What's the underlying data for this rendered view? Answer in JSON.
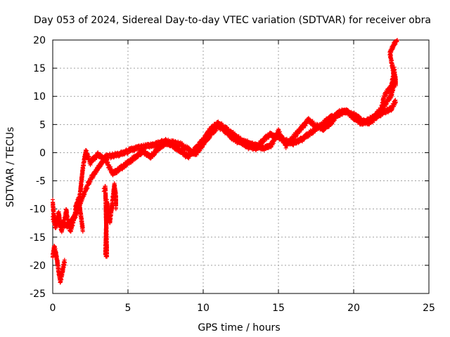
{
  "chart_data": {
    "type": "scatter",
    "title": "Day 053 of 2024, Sidereal Day-to-day VTEC variation (SDTVAR) for receiver obra",
    "xlabel": "GPS time / hours",
    "ylabel": "SDTVAR / TECUs",
    "xlim": [
      0,
      25
    ],
    "ylim": [
      -25,
      20
    ],
    "xticks": [
      "0",
      "5",
      "10",
      "15",
      "20",
      "25"
    ],
    "yticks": [
      "-25",
      "-20",
      "-15",
      "-10",
      "-5",
      "0",
      "5",
      "10",
      "15",
      "20"
    ],
    "grid": true,
    "marker": "+",
    "series": [
      {
        "name": "early_scatter",
        "points": [
          [
            0,
            -9
          ],
          [
            0.1,
            -12.5
          ],
          [
            0.2,
            -13.5
          ],
          [
            0.3,
            -12
          ],
          [
            0.4,
            -11
          ],
          [
            0.5,
            -13
          ],
          [
            0.6,
            -14
          ],
          [
            0.7,
            -12.5
          ],
          [
            0.8,
            -12
          ],
          [
            0.9,
            -10.5
          ],
          [
            1.0,
            -12.5
          ],
          [
            1.1,
            -13.5
          ],
          [
            1.2,
            -14
          ],
          [
            1.3,
            -13
          ],
          [
            1.4,
            -12
          ],
          [
            1.5,
            -11
          ],
          [
            1.6,
            -10
          ],
          [
            1.7,
            -9
          ],
          [
            1.8,
            -10
          ],
          [
            1.9,
            -12
          ],
          [
            2.0,
            -14
          ]
        ]
      },
      {
        "name": "track_a",
        "points": [
          [
            0,
            -12
          ],
          [
            0.5,
            -12.8
          ],
          [
            1.0,
            -13.2
          ],
          [
            1.5,
            -11.5
          ],
          [
            2.0,
            -8
          ],
          [
            2.5,
            -5
          ],
          [
            3.0,
            -3
          ],
          [
            3.5,
            -1
          ],
          [
            4.5,
            -0.5
          ],
          [
            5.5,
            0.5
          ],
          [
            6.5,
            1
          ],
          [
            7.5,
            1.8
          ],
          [
            8.5,
            1.2
          ],
          [
            9.5,
            -0.5
          ],
          [
            10.5,
            3
          ],
          [
            11.0,
            4.5
          ],
          [
            11.5,
            3.5
          ],
          [
            12.0,
            2.2
          ],
          [
            12.5,
            1.5
          ],
          [
            13.0,
            0.8
          ],
          [
            13.5,
            0.5
          ],
          [
            14.0,
            2
          ],
          [
            14.5,
            3
          ],
          [
            15.0,
            2.5
          ],
          [
            15.5,
            1.8
          ],
          [
            16.0,
            1.5
          ],
          [
            16.5,
            2
          ],
          [
            17.0,
            3
          ],
          [
            17.5,
            4
          ],
          [
            18.0,
            5
          ],
          [
            18.5,
            6
          ],
          [
            19.0,
            6.5
          ],
          [
            19.5,
            7.2
          ],
          [
            20.0,
            6.5
          ],
          [
            20.5,
            5.5
          ],
          [
            21.0,
            5
          ],
          [
            21.5,
            6
          ],
          [
            22.0,
            7
          ],
          [
            22.5,
            7.5
          ],
          [
            22.8,
            9
          ]
        ]
      },
      {
        "name": "track_b",
        "points": [
          [
            1.5,
            -10
          ],
          [
            1.8,
            -8
          ],
          [
            2.0,
            -3
          ],
          [
            2.2,
            0
          ],
          [
            2.5,
            -2
          ],
          [
            3.0,
            -0.5
          ],
          [
            3.5,
            -1.5
          ],
          [
            4.0,
            -4
          ],
          [
            4.5,
            -3
          ],
          [
            5.0,
            -2
          ],
          [
            5.5,
            -1
          ],
          [
            6.0,
            0
          ],
          [
            6.5,
            -1
          ],
          [
            7.0,
            0.5
          ],
          [
            7.5,
            1.5
          ],
          [
            8.0,
            1
          ],
          [
            8.5,
            0
          ],
          [
            9.0,
            -1
          ],
          [
            9.5,
            0.5
          ],
          [
            10.0,
            2
          ],
          [
            10.5,
            4
          ],
          [
            11.0,
            5
          ],
          [
            11.5,
            4
          ],
          [
            12.0,
            3
          ],
          [
            12.5,
            2
          ],
          [
            13.0,
            1.5
          ],
          [
            13.5,
            1
          ],
          [
            14.0,
            0.5
          ],
          [
            14.5,
            1
          ],
          [
            15.0,
            3.5
          ],
          [
            15.5,
            1
          ],
          [
            16.0,
            2.5
          ],
          [
            16.5,
            4
          ],
          [
            17.0,
            5.5
          ],
          [
            17.5,
            4.5
          ],
          [
            18.0,
            4
          ],
          [
            18.5,
            5
          ],
          [
            19.0,
            7
          ],
          [
            19.5,
            7
          ],
          [
            20.0,
            6
          ],
          [
            20.5,
            5
          ],
          [
            21.0,
            5.5
          ],
          [
            21.5,
            6.5
          ],
          [
            22.0,
            8
          ],
          [
            22.5,
            10
          ],
          [
            22.8,
            13
          ]
        ]
      },
      {
        "name": "low_cluster",
        "points": [
          [
            0,
            -18.5
          ],
          [
            0.1,
            -17
          ],
          [
            0.2,
            -18
          ],
          [
            0.3,
            -19.5
          ],
          [
            0.4,
            -21.5
          ],
          [
            0.5,
            -23
          ],
          [
            0.6,
            -22
          ],
          [
            0.7,
            -20.5
          ],
          [
            0.8,
            -19.5
          ]
        ]
      },
      {
        "name": "isolated_3h",
        "points": [
          [
            3.4,
            -7
          ],
          [
            3.5,
            -6.5
          ],
          [
            3.6,
            -18.5
          ],
          [
            3.5,
            -18.3
          ],
          [
            3.6,
            -9
          ],
          [
            3.7,
            -11
          ],
          [
            3.8,
            -12.5
          ],
          [
            4.1,
            -6
          ],
          [
            4.2,
            -8
          ],
          [
            4.2,
            -10
          ]
        ]
      },
      {
        "name": "late_rise",
        "points": [
          [
            21.8,
            7
          ],
          [
            22.0,
            9.5
          ],
          [
            22.2,
            10.5
          ],
          [
            22.5,
            11.5
          ],
          [
            22.6,
            13
          ],
          [
            22.7,
            14.5
          ],
          [
            22.8,
            12
          ],
          [
            22.4,
            17.5
          ],
          [
            22.6,
            18.5
          ],
          [
            22.8,
            19.5
          ],
          [
            22.9,
            20
          ]
        ]
      }
    ]
  }
}
